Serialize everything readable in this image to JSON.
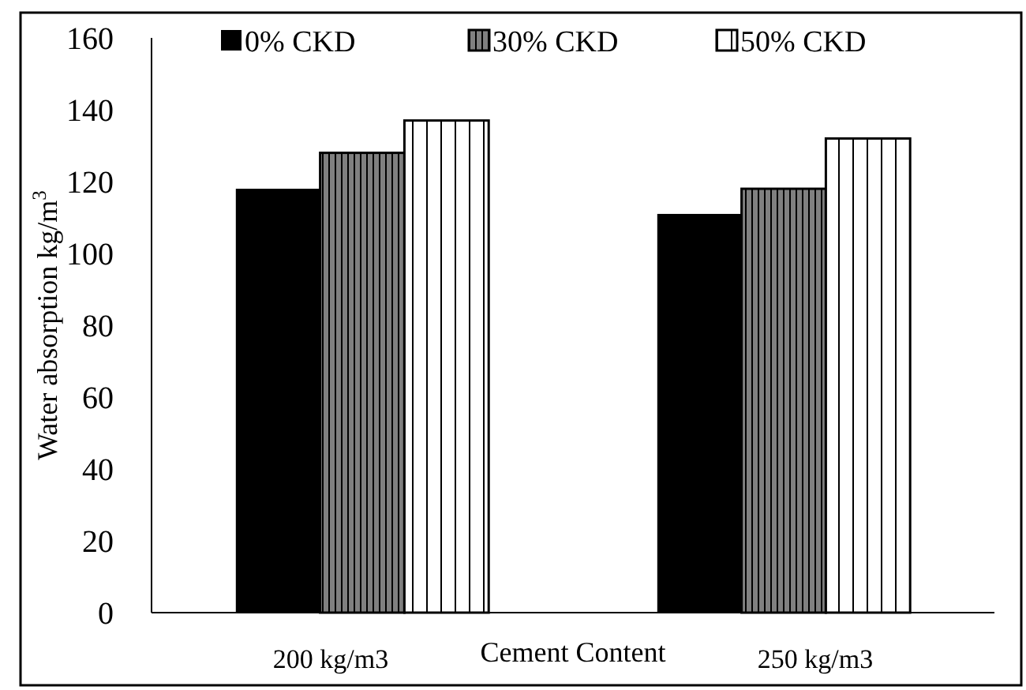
{
  "chart_data": {
    "type": "bar",
    "xlabel": "Cement Content",
    "ylabel": "Water absorption kg/m$^{3}$",
    "categories": [
      "200 kg/m3",
      "250 kg/m3"
    ],
    "series": [
      {
        "name": "0% CKD",
        "color": "#000000",
        "values": [
          118,
          111
        ]
      },
      {
        "name": "30% CKD",
        "color": "#808080",
        "values": [
          128,
          118
        ]
      },
      {
        "name": "50% CKD",
        "color": "#ffffff",
        "values": [
          137,
          132
        ]
      }
    ],
    "ylim": [
      0,
      160
    ],
    "yticks": [
      0,
      20,
      40,
      60,
      80,
      100,
      120,
      140,
      160
    ],
    "grid": false,
    "legend": "top"
  }
}
